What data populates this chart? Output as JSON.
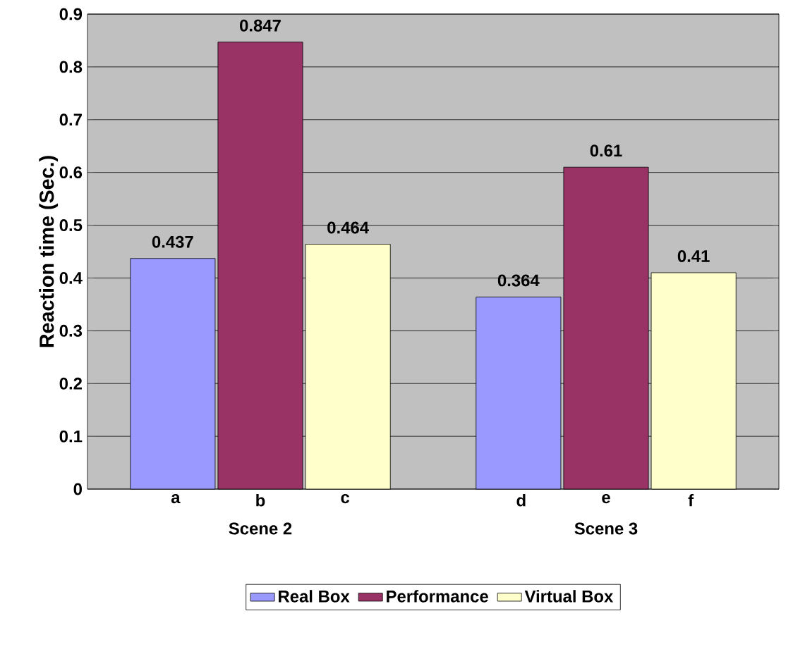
{
  "chart_data": {
    "type": "bar",
    "ylabel": "Reaction time (Sec.)",
    "categories": [
      "Scene 2",
      "Scene 3"
    ],
    "series": [
      {
        "name": "Real Box",
        "color": "#9999ff",
        "values": [
          0.437,
          0.364
        ]
      },
      {
        "name": "Performance",
        "color": "#993366",
        "values": [
          0.847,
          0.61
        ]
      },
      {
        "name": "Virtual Box",
        "color": "#ffffcc",
        "values": [
          0.464,
          0.41
        ]
      }
    ],
    "ylim": [
      0,
      0.9
    ],
    "yticks": [
      0,
      0.1,
      0.2,
      0.3,
      0.4,
      0.5,
      0.6,
      0.7,
      0.8,
      0.9
    ],
    "grid": "y",
    "legend": "bottom",
    "data_labels": true,
    "annotations": [
      "a",
      "b",
      "c",
      "d",
      "e",
      "f"
    ]
  }
}
